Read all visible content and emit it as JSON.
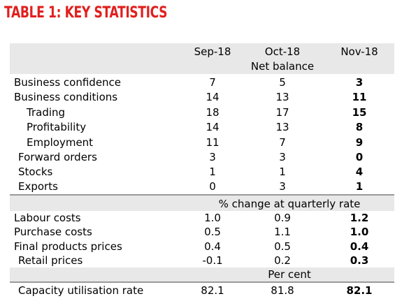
{
  "title": "TABLE 1: KEY STATISTICS",
  "header": {
    "col1": "Sep-18",
    "col2": "Oct-18",
    "col3": "Nov-18"
  },
  "sections": [
    {
      "unit": "Net balance",
      "rows": [
        {
          "label": "Business confidence",
          "v1": "7",
          "v2": "5",
          "v3": "3"
        },
        {
          "label": "Business conditions",
          "v1": "14",
          "v2": "13",
          "v3": "11"
        },
        {
          "label": "Trading",
          "v1": "18",
          "v2": "17",
          "v3": "15"
        },
        {
          "label": "Profitability",
          "v1": "14",
          "v2": "13",
          "v3": "8"
        },
        {
          "label": "Employment",
          "v1": "11",
          "v2": "7",
          "v3": "9"
        },
        {
          "label": "Forward orders",
          "v1": "3",
          "v2": "3",
          "v3": "0"
        },
        {
          "label": "Stocks",
          "v1": "1",
          "v2": "1",
          "v3": "4"
        },
        {
          "label": "Exports",
          "v1": "0",
          "v2": "3",
          "v3": "1"
        }
      ]
    },
    {
      "unit": "% change at quarterly rate",
      "rows": [
        {
          "label": "Labour costs",
          "v1": "1.0",
          "v2": "0.9",
          "v3": "1.2"
        },
        {
          "label": "Purchase costs",
          "v1": "0.5",
          "v2": "1.1",
          "v3": "1.0"
        },
        {
          "label": "Final products prices",
          "v1": "0.4",
          "v2": "0.5",
          "v3": "0.4"
        },
        {
          "label": "Retail prices",
          "v1": "-0.1",
          "v2": "0.2",
          "v3": "0.3"
        }
      ]
    },
    {
      "unit": "Per cent",
      "rows": [
        {
          "label": "Capacity utilisation rate",
          "v1": "82.1",
          "v2": "81.8",
          "v3": "82.1"
        }
      ]
    }
  ],
  "colors": {
    "title": "#e0201e",
    "shading": "#e8e8e8",
    "divider": "#9a9a9a"
  }
}
